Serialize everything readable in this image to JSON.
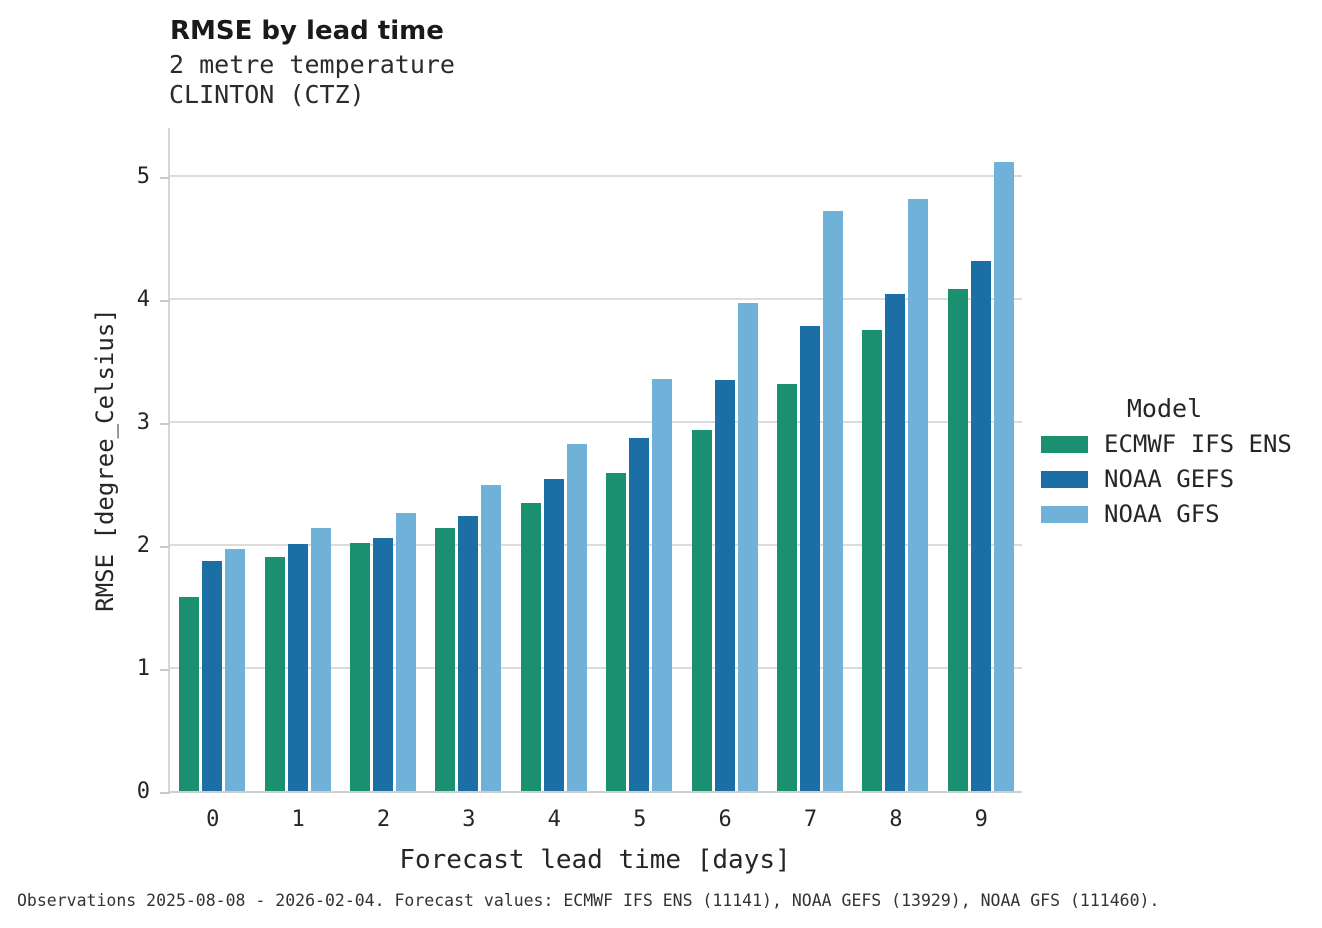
{
  "header": {
    "title": "RMSE by lead time",
    "subtitle_parameter": "2 metre temperature",
    "subtitle_station": "CLINTON (CTZ)"
  },
  "legend": {
    "title": "Model",
    "entries": [
      {
        "label": "ECMWF IFS ENS",
        "color": "#1b9070"
      },
      {
        "label": "NOAA GEFS",
        "color": "#1c6fa5"
      },
      {
        "label": "NOAA GFS",
        "color": "#6fb1d8"
      }
    ]
  },
  "footer": {
    "text": "Observations 2025-08-08 - 2026-02-04. Forecast values: ECMWF IFS ENS (11141), NOAA GEFS (13929), NOAA GFS (111460)."
  },
  "chart_data": {
    "type": "bar",
    "title": "RMSE by lead time",
    "subtitle": [
      "2 metre temperature",
      "CLINTON (CTZ)"
    ],
    "xlabel": "Forecast lead time [days]",
    "ylabel": "RMSE [degree_Celsius]",
    "categories": [
      "0",
      "1",
      "2",
      "3",
      "4",
      "5",
      "6",
      "7",
      "8",
      "9"
    ],
    "series": [
      {
        "name": "ECMWF IFS ENS",
        "color": "#1b9070",
        "values": [
          1.58,
          1.9,
          2.02,
          2.14,
          2.34,
          2.59,
          2.94,
          3.31,
          3.75,
          4.08
        ]
      },
      {
        "name": "NOAA GEFS",
        "color": "#1c6fa5",
        "values": [
          1.87,
          2.01,
          2.06,
          2.24,
          2.54,
          2.87,
          3.34,
          3.78,
          4.04,
          4.31
        ]
      },
      {
        "name": "NOAA GFS",
        "color": "#6fb1d8",
        "values": [
          1.97,
          2.14,
          2.26,
          2.49,
          2.82,
          3.35,
          3.97,
          4.72,
          4.82,
          5.12
        ]
      }
    ],
    "yticks": [
      0,
      1,
      2,
      3,
      4,
      5
    ],
    "ylim": [
      0,
      5.41
    ],
    "grid": true,
    "legend_title": "Model",
    "legend_position": "right"
  },
  "colors": {
    "gridline": "#dcdcdc",
    "spine": "#cfcfcf",
    "text": "#262626"
  }
}
